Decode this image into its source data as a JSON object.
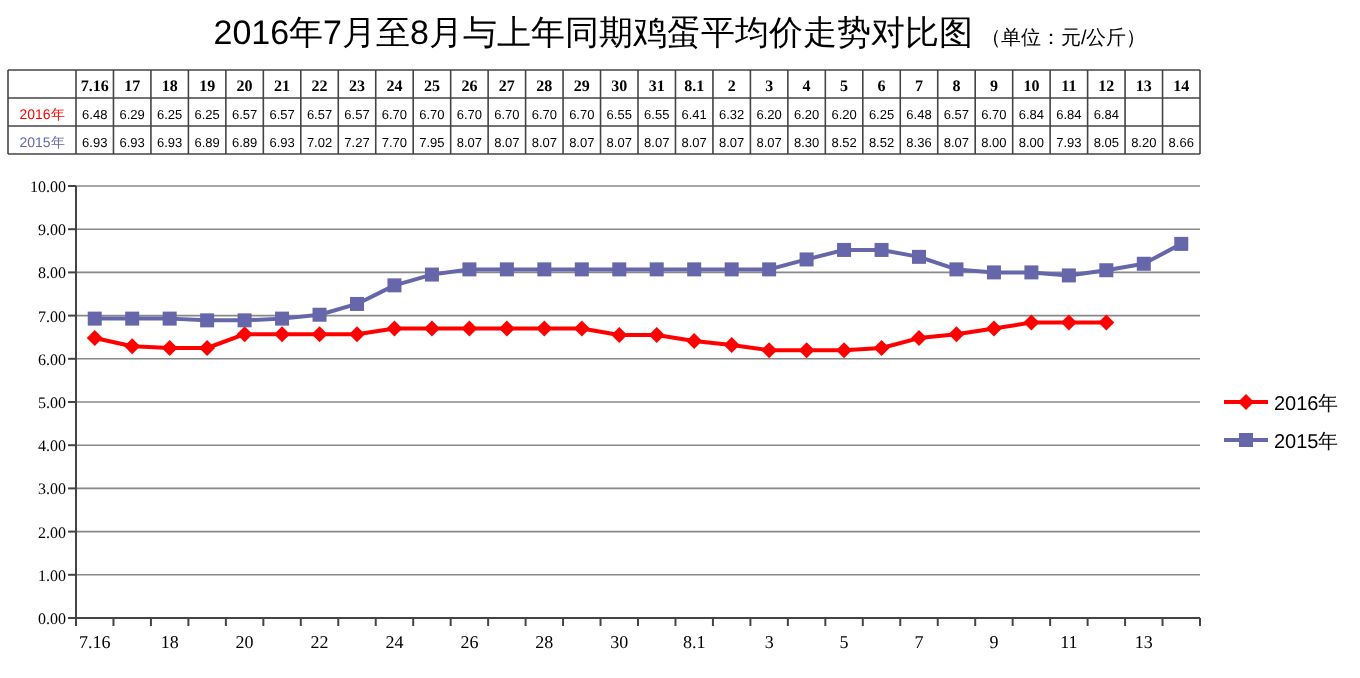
{
  "chart_data": {
    "type": "line",
    "title": "2016年7月至8月与上年同期鸡蛋平均价走势对比图",
    "subtitle": "（单位：元/公斤）",
    "categories": [
      "7.16",
      "17",
      "18",
      "19",
      "20",
      "21",
      "22",
      "23",
      "24",
      "25",
      "26",
      "27",
      "28",
      "29",
      "30",
      "31",
      "8.1",
      "2",
      "3",
      "4",
      "5",
      "6",
      "7",
      "8",
      "9",
      "10",
      "11",
      "12",
      "13",
      "14"
    ],
    "series": [
      {
        "name": "2016年",
        "color": "#ff0000",
        "marker": "diamond",
        "values": [
          6.48,
          6.29,
          6.25,
          6.25,
          6.57,
          6.57,
          6.57,
          6.57,
          6.7,
          6.7,
          6.7,
          6.7,
          6.7,
          6.7,
          6.55,
          6.55,
          6.41,
          6.32,
          6.2,
          6.2,
          6.2,
          6.25,
          6.48,
          6.57,
          6.7,
          6.84,
          6.84,
          6.84,
          null,
          null
        ],
        "value_labels": [
          "6.48",
          "6.29",
          "6.25",
          "6.25",
          "6.57",
          "6.57",
          "6.57",
          "6.57",
          "6.70",
          "6.70",
          "6.70",
          "6.70",
          "6.70",
          "6.70",
          "6.55",
          "6.55",
          "6.41",
          "6.32",
          "6.20",
          "6.20",
          "6.20",
          "6.25",
          "6.48",
          "6.57",
          "6.70",
          "6.84",
          "6.84",
          "6.84",
          null,
          null
        ]
      },
      {
        "name": "2015年",
        "color": "#6666aa",
        "marker": "square",
        "values": [
          6.93,
          6.93,
          6.93,
          6.89,
          6.89,
          6.93,
          7.02,
          7.27,
          7.7,
          7.95,
          8.07,
          8.07,
          8.07,
          8.07,
          8.07,
          8.07,
          8.07,
          8.07,
          8.07,
          8.3,
          8.52,
          8.52,
          8.36,
          8.07,
          8.0,
          8.0,
          7.93,
          8.05,
          8.2,
          8.66
        ],
        "value_labels": [
          "6.93",
          "6.93",
          "6.93",
          "6.89",
          "6.89",
          "6.93",
          "7.02",
          "7.27",
          "7.70",
          "7.95",
          "8.07",
          "8.07",
          "8.07",
          "8.07",
          "8.07",
          "8.07",
          "8.07",
          "8.07",
          "8.07",
          "8.30",
          "8.52",
          "8.52",
          "8.36",
          "8.07",
          "8.00",
          "8.00",
          "7.93",
          "8.05",
          "8.20",
          "8.66"
        ]
      }
    ],
    "ylim": [
      0,
      10
    ],
    "yticks": [
      {
        "value": 0,
        "label": "0.00"
      },
      {
        "value": 1,
        "label": "1.00"
      },
      {
        "value": 2,
        "label": "2.00"
      },
      {
        "value": 3,
        "label": "3.00"
      },
      {
        "value": 4,
        "label": "4.00"
      },
      {
        "value": 5,
        "label": "5.00"
      },
      {
        "value": 6,
        "label": "6.00"
      },
      {
        "value": 7,
        "label": "7.00"
      },
      {
        "value": 8,
        "label": "8.00"
      },
      {
        "value": 9,
        "label": "9.00"
      },
      {
        "value": 10,
        "label": "10.00"
      }
    ],
    "grid": "y",
    "legend": "right",
    "line_style": "solid"
  }
}
